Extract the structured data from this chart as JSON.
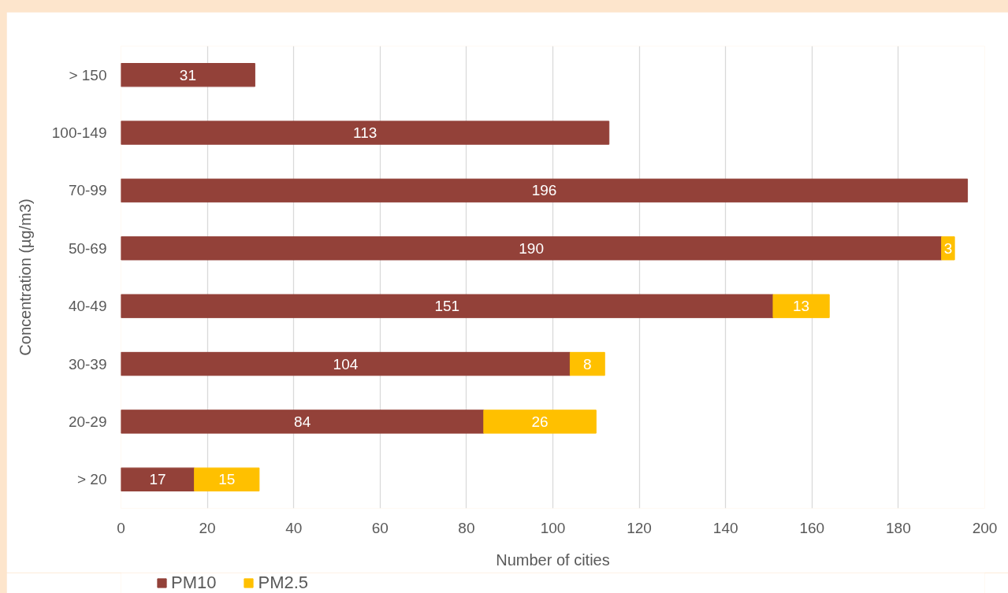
{
  "chart_data": {
    "type": "bar",
    "orientation": "horizontal",
    "stacked": true,
    "categories": [
      "> 150",
      "100-149",
      "70-99",
      "50-69",
      "40-49",
      "30-39",
      "20-29",
      "> 20"
    ],
    "series": [
      {
        "name": "PM10",
        "color": "#934139",
        "values": [
          31,
          113,
          196,
          190,
          151,
          104,
          84,
          17
        ]
      },
      {
        "name": "PM2.5",
        "color": "#ffc000",
        "values": [
          null,
          null,
          null,
          3,
          13,
          8,
          26,
          15
        ]
      }
    ],
    "xlabel": "Number of cities",
    "ylabel": "Concentration (µg/m3)",
    "xlim": [
      0,
      200
    ],
    "xticks": [
      0,
      20,
      40,
      60,
      80,
      100,
      120,
      140,
      160,
      180,
      200
    ],
    "grid": "x",
    "legend": "bottom left",
    "data_labels": true
  }
}
